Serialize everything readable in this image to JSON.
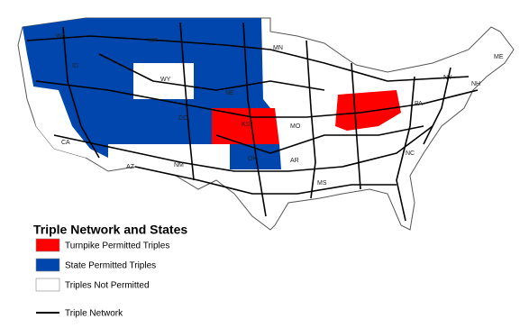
{
  "legend": {
    "title": "Triple Network and States",
    "items": [
      {
        "label": "Turnpike Permitted Triples",
        "color": "#ff0000"
      },
      {
        "label": "State Permitted Triples",
        "color": "#0046ad"
      },
      {
        "label": "Triples Not Permitted",
        "color": "#ffffff"
      }
    ],
    "network": "Triple Network"
  },
  "state_labels": [
    "WA",
    "MT",
    "MN",
    "ID",
    "WY",
    "NE",
    "CO",
    "KS",
    "MO",
    "NM",
    "AZ",
    "CA",
    "NY",
    "NH",
    "ME",
    "PA",
    "NC",
    "MS",
    "OK",
    "AR"
  ]
}
